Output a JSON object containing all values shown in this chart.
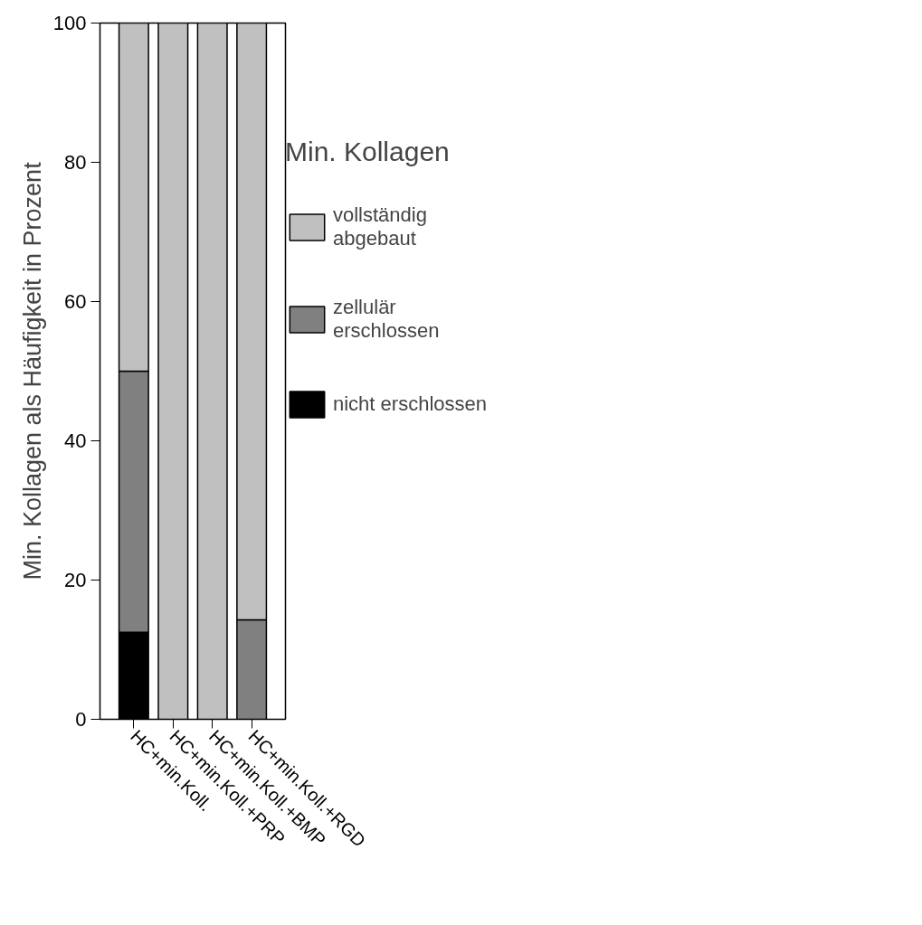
{
  "chart_data": {
    "type": "bar",
    "stacked": true,
    "ylabel": "Min. Kollagen als Häufigkeit in Prozent",
    "legend_title": "Min. Kollagen",
    "legend": "right",
    "categories": [
      "HC+min.Koll.",
      "HC+min.Koll.+PRP",
      "HC+min.Koll.+BMP",
      "HC+min.Koll.+RGD"
    ],
    "series": [
      {
        "name": "nicht erschlossen",
        "color": "#000000",
        "values": [
          12.5,
          0,
          0,
          0
        ]
      },
      {
        "name": "zellulär\nerschlossen",
        "color": "#808080",
        "values": [
          37.5,
          0,
          0,
          14.3
        ]
      },
      {
        "name": "vollständig\nabgebaut",
        "color": "#c0c0c0",
        "values": [
          50,
          100,
          100,
          85.7
        ]
      }
    ],
    "ylim": [
      0,
      100
    ],
    "yticks": [
      0,
      20,
      40,
      60,
      80,
      100
    ],
    "grid": false
  }
}
